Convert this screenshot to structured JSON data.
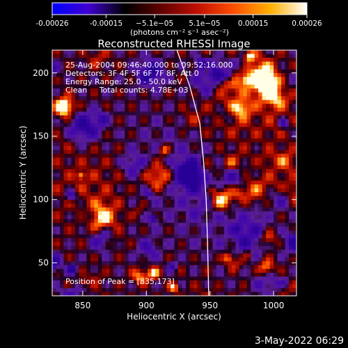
{
  "colorbar": {
    "ticks": [
      "-0.00026",
      "-0.00015",
      "−5.1e−05",
      "5.1e−05",
      "0.00015",
      "0.00026"
    ],
    "tick_values": [
      -0.00026,
      -0.00015,
      -5.1e-05,
      5.1e-05,
      0.00015,
      0.00026
    ],
    "range": [
      -0.00026,
      0.00026
    ],
    "unit_label": "(photons cm⁻² s⁻¹ asec⁻²)",
    "colors": [
      "#0000ff",
      "#4000d0",
      "#000000",
      "#600000",
      "#c01000",
      "#ff5000",
      "#ffb000",
      "#ffffff"
    ]
  },
  "info_lines": [
    "25-Aug-2004 09:46:40.000 to 09:52:16.000",
    "Detectors: 3F 4F 5F 6F 7F 8F, Att 0",
    "Energy Range: 25.0 - 50.0 keV",
    "Clean     Total counts: 4.78E+03"
  ],
  "peak_text": "Position of Peak = [835,173]",
  "footer": {
    "timestamp": "3-May-2022 06:29"
  },
  "chart_data": {
    "type": "heatmap",
    "title": "Reconstructed RHESSI Image",
    "xlabel": "Heliocentric X (arcsec)",
    "ylabel": "Heliocentric Y (arcsec)",
    "xlim": [
      826,
      1018
    ],
    "ylim": [
      24,
      218
    ],
    "xticks": [
      850,
      900,
      950,
      1000
    ],
    "yticks": [
      50,
      100,
      150,
      200
    ],
    "peak": {
      "x": 835,
      "y": 173
    },
    "limb_curve": [
      [
        924,
        218
      ],
      [
        934,
        190
      ],
      [
        942,
        160
      ],
      [
        945,
        130
      ],
      [
        947,
        100
      ],
      [
        948,
        70
      ],
      [
        949,
        24
      ]
    ],
    "colors": {
      "negative": "#4000a0",
      "positive": "#d02000",
      "peak": "#ffffff",
      "limb": "#ffffff"
    }
  }
}
